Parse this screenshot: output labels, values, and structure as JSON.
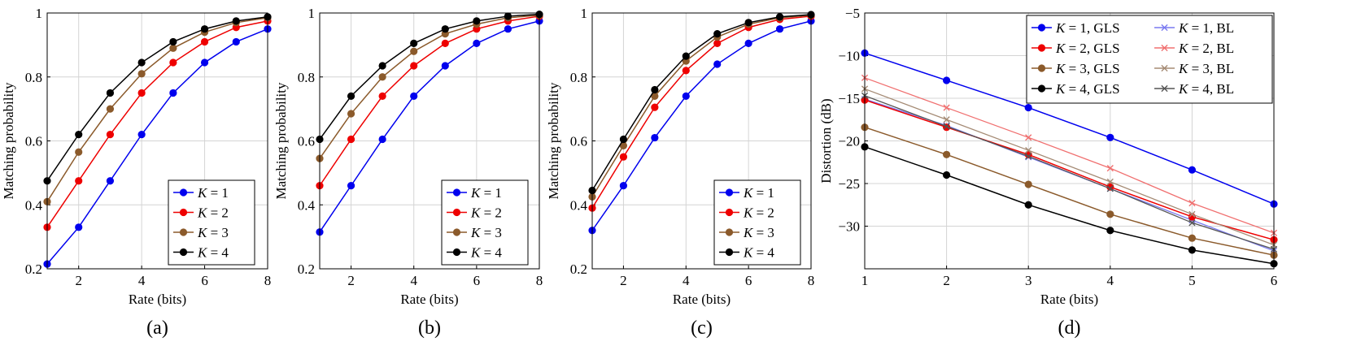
{
  "chart_data": [
    {
      "type": "line",
      "panel_label": "(a)",
      "xlabel": "Rate (bits)",
      "ylabel": "Matching probability",
      "xlim": [
        1,
        8
      ],
      "ylim": [
        0.2,
        1
      ],
      "xticks": [
        2,
        4,
        6,
        8
      ],
      "yticks": [
        0.2,
        0.4,
        0.6,
        0.8,
        1
      ],
      "ytick_labels": [
        "0.2",
        "0.4",
        "0.6",
        "0.8",
        "1"
      ],
      "grid": true,
      "legend_position": "bottom-right",
      "x": [
        1,
        2,
        3,
        4,
        5,
        6,
        7,
        8
      ],
      "series": [
        {
          "name": "K = 1",
          "color": "#0000ee",
          "marker": "circle",
          "values": [
            0.215,
            0.33,
            0.475,
            0.62,
            0.75,
            0.845,
            0.91,
            0.95
          ]
        },
        {
          "name": "K = 2",
          "color": "#ee0000",
          "marker": "circle",
          "values": [
            0.33,
            0.475,
            0.62,
            0.75,
            0.845,
            0.91,
            0.955,
            0.975
          ]
        },
        {
          "name": "K = 3",
          "color": "#8b5a2b",
          "marker": "circle",
          "values": [
            0.41,
            0.565,
            0.7,
            0.81,
            0.89,
            0.94,
            0.97,
            0.985
          ]
        },
        {
          "name": "K = 4",
          "color": "#000000",
          "marker": "circle",
          "values": [
            0.475,
            0.62,
            0.75,
            0.845,
            0.91,
            0.95,
            0.975,
            0.988
          ]
        }
      ]
    },
    {
      "type": "line",
      "panel_label": "(b)",
      "xlabel": "Rate (bits)",
      "ylabel": "Matching probability",
      "xlim": [
        1,
        8
      ],
      "ylim": [
        0.2,
        1
      ],
      "xticks": [
        2,
        4,
        6,
        8
      ],
      "yticks": [
        0.2,
        0.4,
        0.6,
        0.8,
        1
      ],
      "ytick_labels": [
        "0.2",
        "0.4",
        "0.6",
        "0.8",
        "1"
      ],
      "grid": true,
      "legend_position": "bottom-right",
      "x": [
        1,
        2,
        3,
        4,
        5,
        6,
        7,
        8
      ],
      "series": [
        {
          "name": "K = 1",
          "color": "#0000ee",
          "marker": "circle",
          "values": [
            0.315,
            0.46,
            0.605,
            0.74,
            0.835,
            0.905,
            0.95,
            0.975
          ]
        },
        {
          "name": "K = 2",
          "color": "#ee0000",
          "marker": "circle",
          "values": [
            0.46,
            0.605,
            0.74,
            0.835,
            0.905,
            0.95,
            0.975,
            0.99
          ]
        },
        {
          "name": "K = 3",
          "color": "#8b5a2b",
          "marker": "circle",
          "values": [
            0.545,
            0.685,
            0.8,
            0.88,
            0.935,
            0.965,
            0.985,
            0.993
          ]
        },
        {
          "name": "K = 4",
          "color": "#000000",
          "marker": "circle",
          "values": [
            0.605,
            0.74,
            0.835,
            0.905,
            0.95,
            0.975,
            0.99,
            0.996
          ]
        }
      ]
    },
    {
      "type": "line",
      "panel_label": "(c)",
      "xlabel": "Rate (bits)",
      "ylabel": "Matching probability",
      "xlim": [
        1,
        8
      ],
      "ylim": [
        0.2,
        1
      ],
      "xticks": [
        2,
        4,
        6,
        8
      ],
      "yticks": [
        0.2,
        0.4,
        0.6,
        0.8,
        1
      ],
      "ytick_labels": [
        "0.2",
        "0.4",
        "0.6",
        "0.8",
        "1"
      ],
      "grid": true,
      "legend_position": "bottom-right",
      "x": [
        1,
        2,
        3,
        4,
        5,
        6,
        7,
        8
      ],
      "series": [
        {
          "name": "K = 1",
          "color": "#0000ee",
          "marker": "circle",
          "values": [
            0.32,
            0.46,
            0.61,
            0.74,
            0.84,
            0.905,
            0.95,
            0.975
          ]
        },
        {
          "name": "K = 2",
          "color": "#ee0000",
          "marker": "circle",
          "values": [
            0.39,
            0.55,
            0.705,
            0.82,
            0.905,
            0.955,
            0.98,
            0.99
          ]
        },
        {
          "name": "K = 3",
          "color": "#8b5a2b",
          "marker": "circle",
          "values": [
            0.425,
            0.585,
            0.74,
            0.85,
            0.925,
            0.965,
            0.985,
            0.993
          ]
        },
        {
          "name": "K = 4",
          "color": "#000000",
          "marker": "circle",
          "values": [
            0.445,
            0.605,
            0.76,
            0.865,
            0.935,
            0.97,
            0.988,
            0.995
          ]
        }
      ]
    },
    {
      "type": "line",
      "panel_label": "(d)",
      "xlabel": "Rate (bits)",
      "ylabel": "Distortion (dB)",
      "xlim": [
        1,
        6
      ],
      "ylim": [
        -35,
        -5
      ],
      "xticks": [
        1,
        2,
        3,
        4,
        5,
        6
      ],
      "yticks": [
        -30,
        -25,
        -20,
        -15,
        -10,
        -5
      ],
      "ytick_labels": [
        "−30",
        "−25",
        "−20",
        "−15",
        "−10",
        "−5"
      ],
      "grid": true,
      "legend_position": "top-right",
      "x": [
        1,
        2,
        3,
        4,
        5,
        6
      ],
      "series": [
        {
          "name": "K = 1, GLS",
          "color": "#0000ee",
          "marker": "circle",
          "values": [
            -9.7,
            -12.9,
            -16.1,
            -19.6,
            -23.4,
            -27.4
          ]
        },
        {
          "name": "K = 1, BL",
          "color": "#7a7af0",
          "marker": "x",
          "values": [
            -15.1,
            -18.2,
            -21.9,
            -25.6,
            -29.3,
            -32.9
          ]
        },
        {
          "name": "K = 2, GLS",
          "color": "#ee0000",
          "marker": "circle",
          "values": [
            -15.2,
            -18.4,
            -21.6,
            -25.4,
            -28.9,
            -31.6
          ]
        },
        {
          "name": "K = 2, BL",
          "color": "#f07070",
          "marker": "x",
          "values": [
            -12.6,
            -16.1,
            -19.6,
            -23.2,
            -27.3,
            -30.8
          ]
        },
        {
          "name": "K = 3, GLS",
          "color": "#8b5a2b",
          "marker": "circle",
          "values": [
            -18.4,
            -21.6,
            -25.1,
            -28.6,
            -31.4,
            -33.4
          ]
        },
        {
          "name": "K = 3, BL",
          "color": "#a58b75",
          "marker": "x",
          "values": [
            -13.9,
            -17.5,
            -21.1,
            -24.8,
            -28.6,
            -32.2
          ]
        },
        {
          "name": "K = 4, GLS",
          "color": "#000000",
          "marker": "circle",
          "values": [
            -20.7,
            -24.0,
            -27.5,
            -30.5,
            -32.8,
            -34.4
          ]
        },
        {
          "name": "K = 4, BL",
          "color": "#555555",
          "marker": "x",
          "values": [
            -14.7,
            -18.3,
            -21.8,
            -25.6,
            -29.6,
            -32.7
          ]
        }
      ]
    }
  ]
}
